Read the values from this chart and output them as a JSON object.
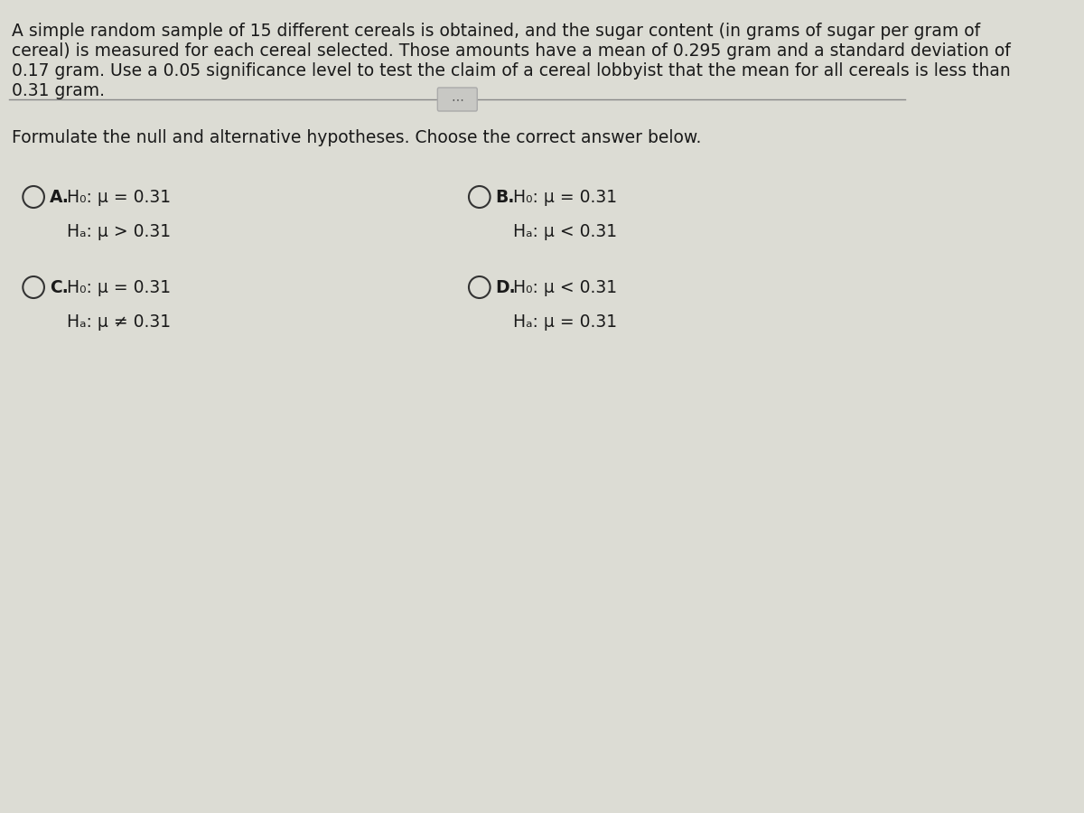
{
  "background_color": "#c8c8c0",
  "content_bg": "#dcdcd4",
  "paragraph_text_lines": [
    "A simple random sample of 15 different cereals is obtained, and the sugar content (in grams of sugar per gram of",
    "cereal) is measured for each cereal selected. Those amounts have a mean of 0.295 gram and a standard deviation of",
    "0.17 gram. Use a 0.05 significance level to test the claim of a cereal lobbyist that the mean for all cereals is less than",
    "0.31 gram."
  ],
  "question_text": "Formulate the null and alternative hypotheses. Choose the correct answer below.",
  "options": {
    "A": {
      "h0": "H₀: μ = 0.31",
      "ha": "Hₐ: μ > 0.31",
      "col": 0,
      "row": 0
    },
    "B": {
      "h0": "H₀: μ = 0.31",
      "ha": "Hₐ: μ < 0.31",
      "col": 1,
      "row": 0
    },
    "C": {
      "h0": "H₀: μ = 0.31",
      "ha": "Hₐ: μ ≠ 0.31",
      "col": 0,
      "row": 1
    },
    "D": {
      "h0": "H₀: μ < 0.31",
      "ha": "Hₐ: μ = 0.31",
      "col": 1,
      "row": 1
    }
  },
  "text_color": "#1a1a1a",
  "font_size_paragraph": 13.5,
  "font_size_question": 13.5,
  "font_size_options": 13.5,
  "line_color": "#888888",
  "circle_color": "#333333",
  "btn_color": "#c8c8c4",
  "btn_border_color": "#aaaaaa"
}
